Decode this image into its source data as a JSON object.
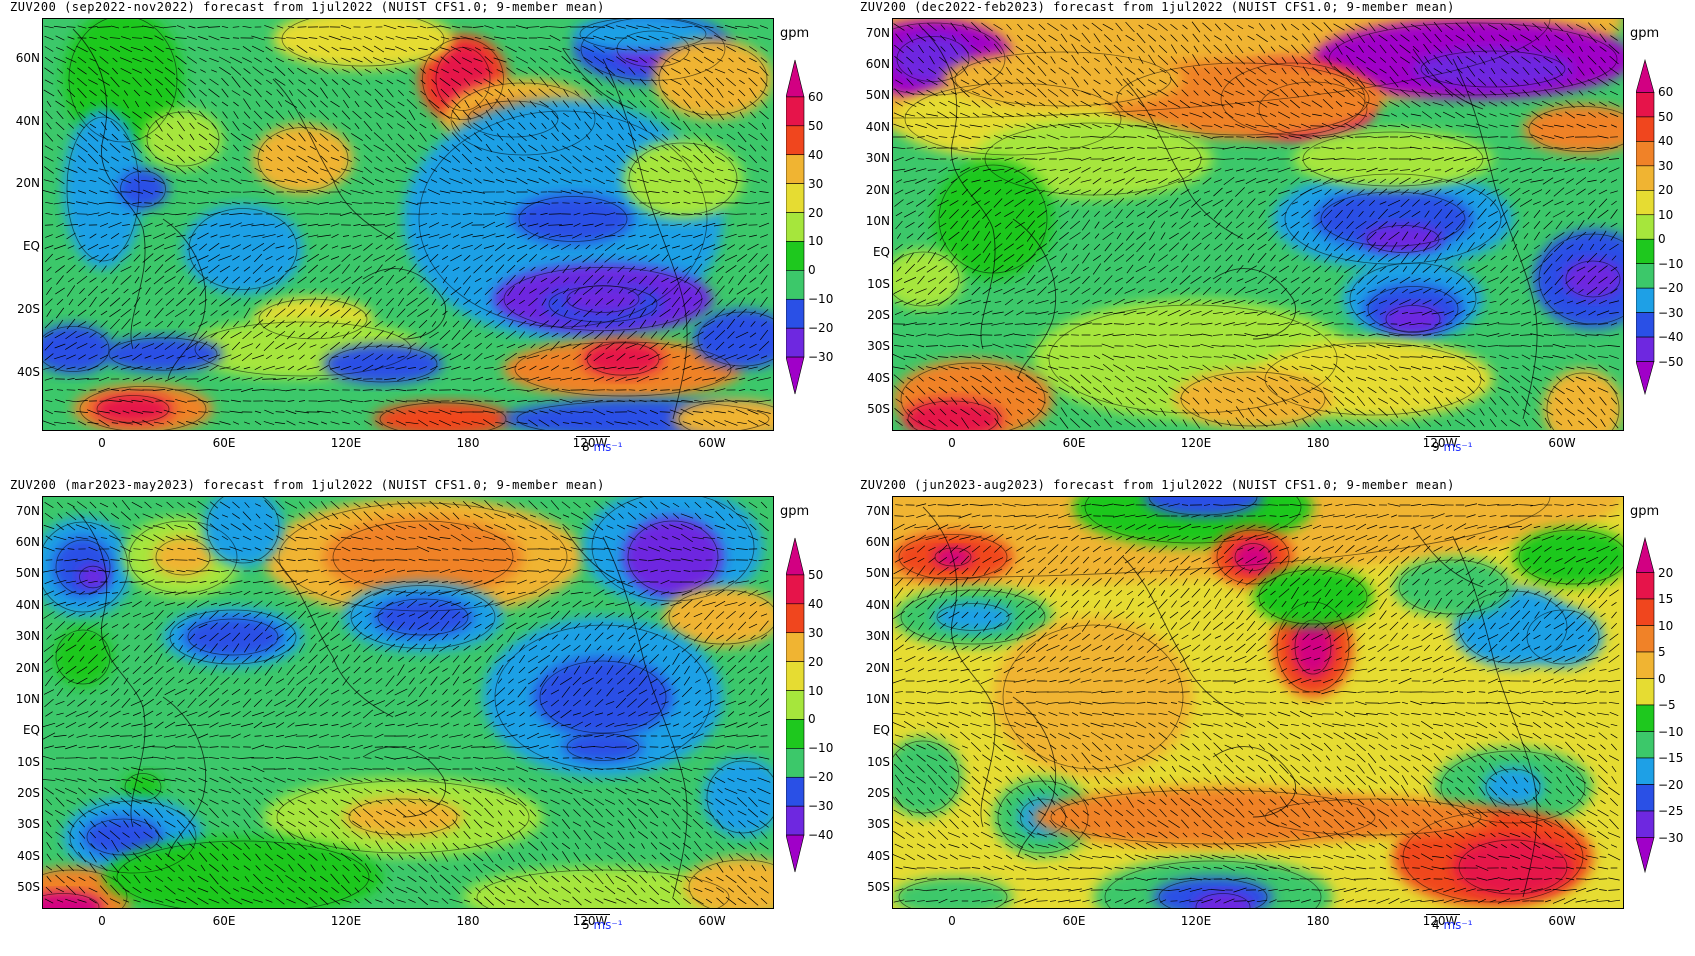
{
  "unit": "gpm",
  "lon_labels": [
    "0",
    "60E",
    "120E",
    "180",
    "120W",
    "60W"
  ],
  "panels": [
    {
      "title": "ZUV200 (sep2022-nov2022) forecast from 1jul2022 (NUIST CFS1.0; 9-member mean)",
      "lat_labels": [
        "60N",
        "40N",
        "20N",
        "EQ",
        "20S",
        "40S"
      ],
      "levels": [
        "60",
        "50",
        "40",
        "30",
        "20",
        "10",
        "0",
        "−10",
        "−20",
        "−30"
      ],
      "ref_vector": "8",
      "ref_unit": "ms⁻¹"
    },
    {
      "title": "ZUV200 (dec2022-feb2023) forecast from 1jul2022 (NUIST CFS1.0; 9-member mean)",
      "lat_labels": [
        "70N",
        "60N",
        "50N",
        "40N",
        "30N",
        "20N",
        "10N",
        "EQ",
        "10S",
        "20S",
        "30S",
        "40S",
        "50S"
      ],
      "levels": [
        "60",
        "50",
        "40",
        "30",
        "20",
        "10",
        "0",
        "−10",
        "−20",
        "−30",
        "−40",
        "−50"
      ],
      "ref_vector": "9",
      "ref_unit": "ms⁻¹"
    },
    {
      "title": "ZUV200 (mar2023-may2023) forecast from 1jul2022 (NUIST CFS1.0; 9-member mean)",
      "lat_labels": [
        "70N",
        "60N",
        "50N",
        "40N",
        "30N",
        "20N",
        "10N",
        "EQ",
        "10S",
        "20S",
        "30S",
        "40S",
        "50S"
      ],
      "levels": [
        "50",
        "40",
        "30",
        "20",
        "10",
        "0",
        "−10",
        "−20",
        "−30",
        "−40"
      ],
      "ref_vector": "5",
      "ref_unit": "ms⁻¹"
    },
    {
      "title": "ZUV200 (jun2023-aug2023) forecast from 1jul2022 (NUIST CFS1.0; 9-member mean)",
      "lat_labels": [
        "70N",
        "60N",
        "50N",
        "40N",
        "30N",
        "20N",
        "10N",
        "EQ",
        "10S",
        "20S",
        "30S",
        "40S",
        "50S"
      ],
      "levels": [
        "20",
        "15",
        "10",
        "5",
        "0",
        "−5",
        "−10",
        "−15",
        "−20",
        "−25",
        "−30"
      ],
      "ref_vector": "4",
      "ref_unit": "ms⁻¹"
    }
  ],
  "colors": {
    "palette": [
      "#a000c8",
      "#6e28e0",
      "#2a50e6",
      "#1ea0e6",
      "#3cc86a",
      "#1ec81e",
      "#a6e63c",
      "#e6dc32",
      "#f0b432",
      "#f08228",
      "#f0461e",
      "#e6144a",
      "#d20082"
    ]
  }
}
